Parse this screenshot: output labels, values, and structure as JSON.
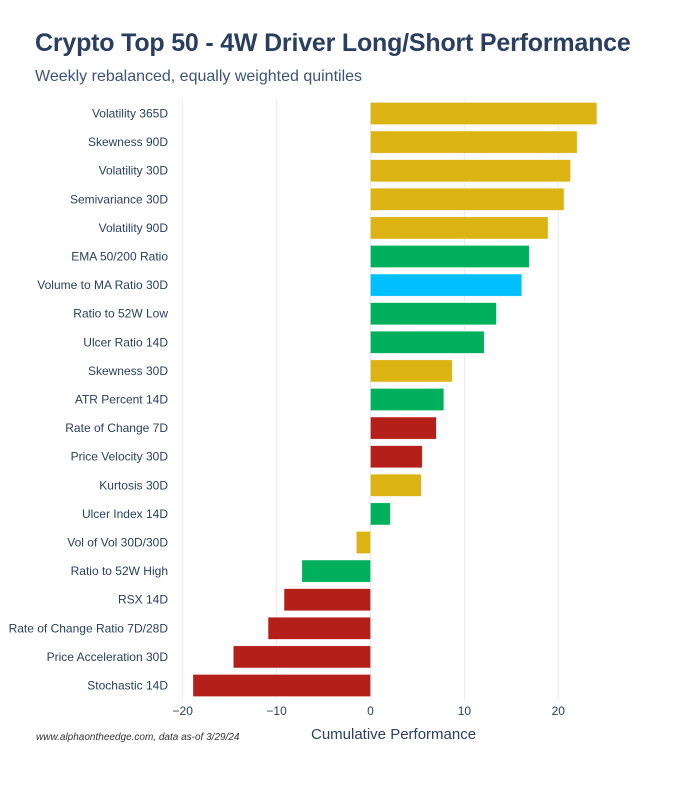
{
  "chart_data": {
    "type": "bar",
    "orientation": "horizontal",
    "title": "Crypto Top 50 - 4W Driver Long/Short Performance",
    "subtitle": "Weekly rebalanced, equally weighted quintiles",
    "xlabel": "Cumulative Performance",
    "ylabel": "",
    "xlim": [
      -20,
      25
    ],
    "xticks": [
      -20,
      -10,
      0,
      10,
      20
    ],
    "xtick_labels": [
      "−20",
      "−10",
      "0",
      "10",
      "20"
    ],
    "grid": true,
    "categories": [
      "Volatility 365D",
      "Skewness 90D",
      "Volatility 30D",
      "Semivariance 30D",
      "Volatility 90D",
      "EMA 50/200 Ratio",
      "Volume to MA Ratio 30D",
      "Ratio to 52W Low",
      "Ulcer Ratio 14D",
      "Skewness 30D",
      "ATR Percent 14D",
      "Rate of Change 7D",
      "Price Velocity 30D",
      "Kurtosis 30D",
      "Ulcer Index 14D",
      "Vol of Vol 30D/30D",
      "Ratio to 52W High",
      "RSX 14D",
      "Rate of Change Ratio 7D/28D",
      "Price Acceleration 30D",
      "Stochastic 14D"
    ],
    "values": [
      24.1,
      22.0,
      21.3,
      20.6,
      18.9,
      16.9,
      16.1,
      13.4,
      12.1,
      8.7,
      7.8,
      7.0,
      5.5,
      5.4,
      2.1,
      -1.5,
      -7.3,
      -9.2,
      -10.9,
      -14.6,
      -18.9
    ],
    "groups": [
      "volatility",
      "volatility",
      "volatility",
      "volatility",
      "volatility",
      "trend",
      "volume",
      "trend",
      "trend",
      "volatility",
      "trend",
      "momentum",
      "momentum",
      "volatility",
      "trend",
      "volatility",
      "trend",
      "momentum",
      "momentum",
      "momentum",
      "momentum"
    ],
    "group_colors": {
      "volatility": "#dbb312",
      "trend": "#00b05c",
      "volume": "#00bfff",
      "momentum": "#b41f19"
    }
  },
  "source": "www.alphaontheedge.com, data as-of 3/29/24"
}
